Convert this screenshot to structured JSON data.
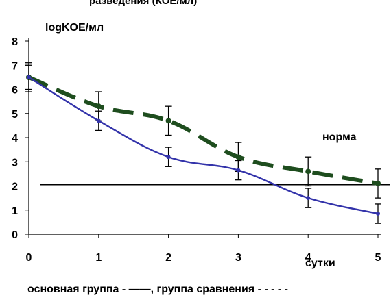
{
  "chart_data": {
    "type": "line",
    "title": "",
    "ylabel": "logKOE/мл",
    "xlabel": "сутки",
    "x": [
      0,
      1,
      2,
      3,
      4,
      5
    ],
    "xlim": [
      0,
      5
    ],
    "ylim": [
      0,
      8
    ],
    "x_ticks": [
      "0",
      "1",
      "2",
      "3",
      "4",
      "5"
    ],
    "y_ticks": [
      "0",
      "1",
      "2",
      "3",
      "4",
      "5",
      "6",
      "7",
      "8"
    ],
    "grid": false,
    "series": [
      {
        "values": [
          6.5,
          4.7,
          3.2,
          2.65,
          1.5,
          0.85
        ],
        "error": [
          0.5,
          0.4,
          0.4,
          0.4,
          0.4,
          0.4
        ],
        "color": "#3333aa",
        "style": "solid",
        "smooth": true
      },
      {
        "values": [
          6.5,
          5.3,
          4.7,
          3.2,
          2.6,
          2.1
        ],
        "error": [
          0.6,
          0.6,
          0.6,
          0.6,
          0.6,
          0.6
        ],
        "color": "#1e4d1e",
        "style": "dashed",
        "smooth": true
      }
    ],
    "reference_line": {
      "value": 2.05,
      "label": "норма",
      "color": "#000000"
    },
    "legend_text": "основная группа - ——, группа сравнения - - - - -",
    "legend_placement": "bottom"
  },
  "header_fragment": "разведения (КОЕ/мл)"
}
